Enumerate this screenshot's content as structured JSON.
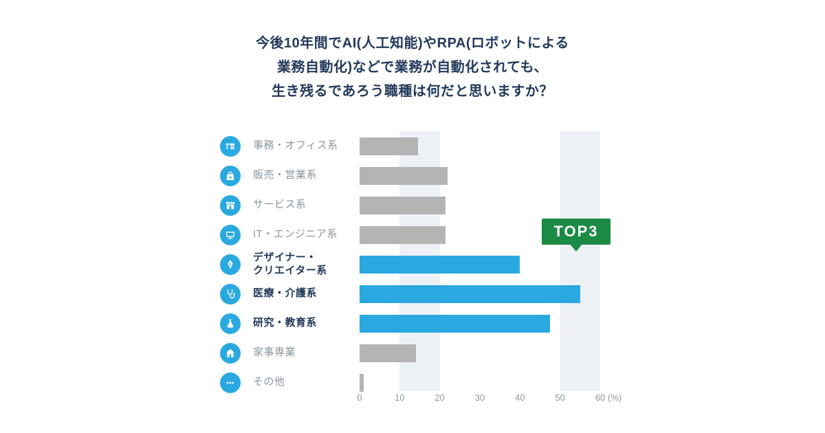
{
  "title": {
    "lines": [
      "今後10年間でAI(人工知能)やRPA(ロボットによる",
      "業務自動化)などで業務が自動化されても、",
      "生き残るであろう職種は何だと思いますか？"
    ]
  },
  "badge": {
    "label": "TOP3"
  },
  "colors": {
    "highlight_bar": "#2aa9e0",
    "default_bar": "#b4b4b4",
    "icon_background": "#2aa9e0",
    "title_text": "#22395a",
    "label_text": "#8a959e",
    "band": "#edf1f5",
    "badge_green": "#1b8a44",
    "axis_text": "#8a959e"
  },
  "chart_data": {
    "type": "bar",
    "orientation": "horizontal",
    "title": "今後10年間でAI(人工知能)やRPA(ロボットによる業務自動化)などで業務が自動化されても、生き残るであろう職種は何だと思いますか？",
    "unit": "%",
    "xlim": [
      0,
      60
    ],
    "x_ticks": [
      "0",
      "10",
      "20",
      "30",
      "40",
      "50",
      "60"
    ],
    "axis_suffix": "(%)",
    "background_bands": [
      [
        10,
        20
      ],
      [
        50,
        60
      ]
    ],
    "annotation_label": "TOP3",
    "rows": [
      {
        "label": "事務・オフィス系",
        "value": 14.5,
        "highlight": false,
        "icon": "desk-icon"
      },
      {
        "label": "販売・営業系",
        "value": 22,
        "highlight": false,
        "icon": "shopping-bag-icon"
      },
      {
        "label": "サービス系",
        "value": 21.5,
        "highlight": false,
        "icon": "storefront-icon"
      },
      {
        "label": "IT・エンジニア系",
        "value": 21.5,
        "highlight": false,
        "icon": "monitor-icon"
      },
      {
        "label": "デザイナー・\nクリエイター系",
        "value": 40,
        "highlight": true,
        "icon": "pen-nib-icon"
      },
      {
        "label": "医療・介護系",
        "value": 55,
        "highlight": true,
        "icon": "stethoscope-icon"
      },
      {
        "label": "研究・教育系",
        "value": 47.5,
        "highlight": true,
        "icon": "flask-icon"
      },
      {
        "label": "家事専業",
        "value": 14,
        "highlight": false,
        "icon": "house-icon"
      },
      {
        "label": "その他",
        "value": 1,
        "highlight": false,
        "icon": "ellipsis-icon"
      }
    ]
  }
}
